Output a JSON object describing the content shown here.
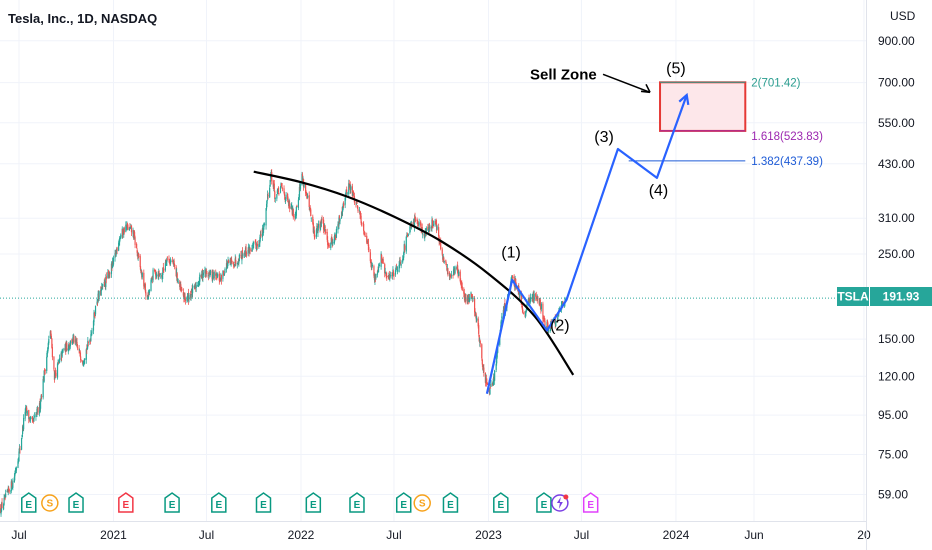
{
  "header": {
    "title": "Tesla, Inc., 1D, NASDAQ"
  },
  "colors": {
    "up": "#26a69a",
    "down": "#ef5350",
    "arc": "#000000",
    "projection": "#2962ff",
    "sell_zone_border": "#e53935",
    "sell_zone_fill": "#fde7ea",
    "fib_2": "#2a9d8f",
    "fib_1618": "#9c27b0",
    "fib_1382": "#1e5bd6",
    "price_badge": "#26a69a"
  },
  "chart_data": {
    "type": "candlestick",
    "symbol": "TSLA",
    "currency": "USD",
    "last_price": 191.93,
    "last_price_label": "191.93",
    "y_scale": "log",
    "ylim": [
      50,
      1150
    ],
    "xlim": [
      "2020-05-25",
      "2025-01-05"
    ],
    "x_ticks": [
      {
        "date": "2020-07-01",
        "label": "Jul"
      },
      {
        "date": "2021-01-01",
        "label": "2021"
      },
      {
        "date": "2021-07-01",
        "label": "Jul"
      },
      {
        "date": "2022-01-01",
        "label": "2022"
      },
      {
        "date": "2022-07-01",
        "label": "Jul"
      },
      {
        "date": "2023-01-01",
        "label": "2023"
      },
      {
        "date": "2023-07-01",
        "label": "Jul"
      },
      {
        "date": "2024-01-01",
        "label": "2024"
      },
      {
        "date": "2024-06-01",
        "label": "Jun"
      },
      {
        "date": "2025-01-01",
        "label": "20"
      }
    ],
    "y_ticks": [
      {
        "value": 900,
        "label": "900.00"
      },
      {
        "value": 700,
        "label": "700.00"
      },
      {
        "value": 550,
        "label": "550.00"
      },
      {
        "value": 430,
        "label": "430.00"
      },
      {
        "value": 310,
        "label": "310.00"
      },
      {
        "value": 250,
        "label": "250.00"
      },
      {
        "value": 150,
        "label": "150.00"
      },
      {
        "value": 120,
        "label": "120.00"
      },
      {
        "value": 95,
        "label": "95.00"
      },
      {
        "value": 75,
        "label": "75.00"
      },
      {
        "value": 59,
        "label": "59.00"
      }
    ],
    "price_path": [
      [
        "2020-05-26",
        54
      ],
      [
        "2020-06-08",
        59
      ],
      [
        "2020-06-20",
        64
      ],
      [
        "2020-07-03",
        78
      ],
      [
        "2020-07-13",
        98
      ],
      [
        "2020-07-27",
        90
      ],
      [
        "2020-08-10",
        100
      ],
      [
        "2020-08-31",
        158
      ],
      [
        "2020-09-08",
        120
      ],
      [
        "2020-09-25",
        140
      ],
      [
        "2020-10-15",
        150
      ],
      [
        "2020-11-02",
        132
      ],
      [
        "2020-11-16",
        150
      ],
      [
        "2020-11-30",
        190
      ],
      [
        "2020-12-15",
        210
      ],
      [
        "2020-12-31",
        235
      ],
      [
        "2021-01-12",
        275
      ],
      [
        "2021-01-25",
        295
      ],
      [
        "2021-02-08",
        285
      ],
      [
        "2021-02-22",
        230
      ],
      [
        "2021-03-08",
        190
      ],
      [
        "2021-03-20",
        225
      ],
      [
        "2021-04-05",
        220
      ],
      [
        "2021-04-14",
        245
      ],
      [
        "2021-04-28",
        235
      ],
      [
        "2021-05-12",
        200
      ],
      [
        "2021-05-22",
        190
      ],
      [
        "2021-06-07",
        202
      ],
      [
        "2021-06-25",
        225
      ],
      [
        "2021-07-12",
        220
      ],
      [
        "2021-07-28",
        215
      ],
      [
        "2021-08-10",
        235
      ],
      [
        "2021-08-25",
        238
      ],
      [
        "2021-09-10",
        252
      ],
      [
        "2021-09-25",
        258
      ],
      [
        "2021-10-08",
        265
      ],
      [
        "2021-10-20",
        290
      ],
      [
        "2021-10-28",
        355
      ],
      [
        "2021-11-04",
        405
      ],
      [
        "2021-11-12",
        350
      ],
      [
        "2021-11-24",
        375
      ],
      [
        "2021-12-06",
        340
      ],
      [
        "2021-12-20",
        315
      ],
      [
        "2022-01-03",
        400
      ],
      [
        "2022-01-14",
        345
      ],
      [
        "2022-01-27",
        280
      ],
      [
        "2022-02-10",
        305
      ],
      [
        "2022-02-24",
        265
      ],
      [
        "2022-03-10",
        280
      ],
      [
        "2022-03-22",
        330
      ],
      [
        "2022-04-04",
        380
      ],
      [
        "2022-04-22",
        330
      ],
      [
        "2022-05-10",
        270
      ],
      [
        "2022-05-24",
        215
      ],
      [
        "2022-06-06",
        245
      ],
      [
        "2022-06-17",
        215
      ],
      [
        "2022-07-01",
        225
      ],
      [
        "2022-07-15",
        240
      ],
      [
        "2022-07-29",
        285
      ],
      [
        "2022-08-15",
        310
      ],
      [
        "2022-08-29",
        280
      ],
      [
        "2022-09-12",
        300
      ],
      [
        "2022-09-20",
        305
      ],
      [
        "2022-10-03",
        245
      ],
      [
        "2022-10-17",
        220
      ],
      [
        "2022-11-01",
        230
      ],
      [
        "2022-11-15",
        190
      ],
      [
        "2022-11-30",
        195
      ],
      [
        "2022-12-12",
        160
      ],
      [
        "2022-12-21",
        125
      ],
      [
        "2023-01-03",
        108
      ],
      [
        "2023-01-12",
        120
      ],
      [
        "2023-01-27",
        170
      ],
      [
        "2023-02-08",
        195
      ],
      [
        "2023-02-16",
        214
      ],
      [
        "2023-02-28",
        205
      ],
      [
        "2023-03-10",
        175
      ],
      [
        "2023-03-22",
        190
      ],
      [
        "2023-04-04",
        195
      ],
      [
        "2023-04-12",
        186
      ],
      [
        "2023-04-21",
        162
      ],
      [
        "2023-05-01",
        162
      ],
      [
        "2023-05-12",
        167
      ],
      [
        "2023-05-22",
        181
      ],
      [
        "2023-05-30",
        191.93
      ]
    ],
    "arc_curve": [
      [
        "2021-10-01",
        410
      ],
      [
        "2022-01-01",
        385
      ],
      [
        "2022-04-01",
        353
      ],
      [
        "2022-07-01",
        313
      ],
      [
        "2022-10-01",
        270
      ],
      [
        "2023-01-01",
        222
      ],
      [
        "2023-04-01",
        172
      ],
      [
        "2023-06-15",
        121
      ]
    ],
    "projection_path": [
      [
        "2022-12-29",
        108
      ],
      [
        "2023-02-16",
        214
      ],
      [
        "2023-03-20",
        185
      ],
      [
        "2023-04-25",
        158
      ],
      [
        "2023-06-02",
        190
      ],
      [
        "2023-09-10",
        470
      ],
      [
        "2023-11-25",
        395
      ],
      [
        "2024-01-22",
        650
      ]
    ],
    "wave_labels": [
      {
        "label": "(1)",
        "date": "2023-02-14",
        "value": 245
      },
      {
        "label": "(2)",
        "date": "2023-05-20",
        "value": 158
      },
      {
        "label": "(3)",
        "date": "2023-08-14",
        "value": 490
      },
      {
        "label": "(4)",
        "date": "2023-11-28",
        "value": 355
      },
      {
        "label": "(5)",
        "date": "2024-01-01",
        "value": 740
      }
    ],
    "sell_zone": {
      "label": "Sell Zone",
      "from": "2023-12-01",
      "to": "2024-05-15",
      "low": 523.83,
      "high": 701.42
    },
    "fib_levels": [
      {
        "ratio": "2",
        "value": 701.42,
        "label": "2(701.42)",
        "from": "2023-12-01",
        "to": "2024-05-15"
      },
      {
        "ratio": "1.618",
        "value": 523.83,
        "label": "1.618(523.83)",
        "from": "2023-12-01",
        "to": "2024-05-15"
      },
      {
        "ratio": "1.382",
        "value": 437.39,
        "label": "1.382(437.39)",
        "from": "2023-10-01",
        "to": "2024-05-15"
      }
    ],
    "event_markers": [
      {
        "type": "E",
        "date": "2020-07-20"
      },
      {
        "type": "S",
        "date": "2020-08-30"
      },
      {
        "type": "E",
        "date": "2020-10-20"
      },
      {
        "type": "E",
        "date": "2021-01-25",
        "negative": true
      },
      {
        "type": "E",
        "date": "2021-04-25"
      },
      {
        "type": "E",
        "date": "2021-07-25"
      },
      {
        "type": "E",
        "date": "2021-10-20"
      },
      {
        "type": "E",
        "date": "2022-01-25"
      },
      {
        "type": "E",
        "date": "2022-04-20"
      },
      {
        "type": "E",
        "date": "2022-07-20"
      },
      {
        "type": "S",
        "date": "2022-08-25"
      },
      {
        "type": "E",
        "date": "2022-10-19"
      },
      {
        "type": "E",
        "date": "2023-01-25"
      },
      {
        "type": "E",
        "date": "2023-04-19"
      },
      {
        "type": "D",
        "date": "2023-05-20"
      },
      {
        "type": "E",
        "date": "2023-07-19",
        "future": true
      }
    ]
  }
}
